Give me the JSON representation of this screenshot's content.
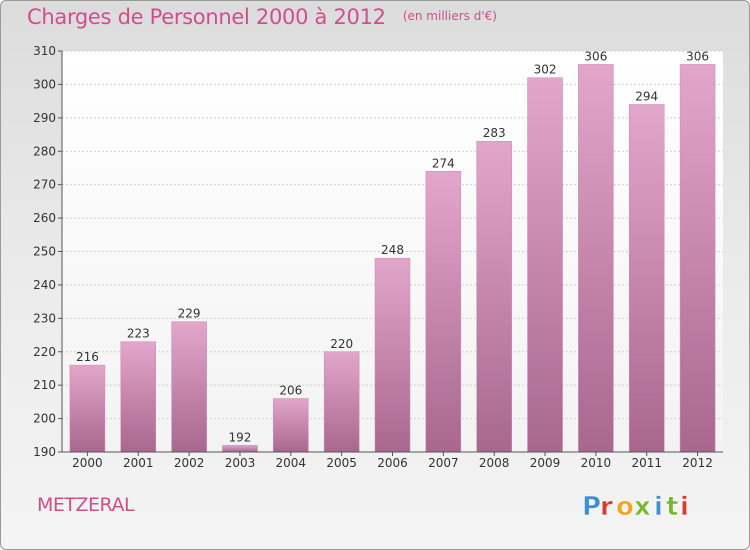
{
  "header": {
    "title": "Charges de Personnel 2000 à 2012",
    "subtitle": "(en milliers d'€)"
  },
  "footer": {
    "city": "METZERAL",
    "logo_text": "Proxiti"
  },
  "colors": {
    "title": "#d24d8c",
    "bar_top": "#e3a6cb",
    "bar_bottom": "#a9678e",
    "logo_letters": [
      "#3f8fd2",
      "#e0382d",
      "#f2a51d",
      "#78b82a",
      "#3f8fd2",
      "#78b82a",
      "#e0382d"
    ]
  },
  "chart_data": {
    "type": "bar",
    "categories": [
      "2000",
      "2001",
      "2002",
      "2003",
      "2004",
      "2005",
      "2006",
      "2007",
      "2008",
      "2009",
      "2010",
      "2011",
      "2012"
    ],
    "values": [
      216,
      223,
      229,
      192,
      206,
      220,
      248,
      274,
      283,
      302,
      306,
      294,
      306
    ],
    "yticks": [
      190,
      200,
      210,
      220,
      230,
      240,
      250,
      260,
      270,
      280,
      290,
      300,
      310
    ],
    "ylim": [
      190,
      310
    ],
    "grid": true,
    "data_labels": true
  }
}
